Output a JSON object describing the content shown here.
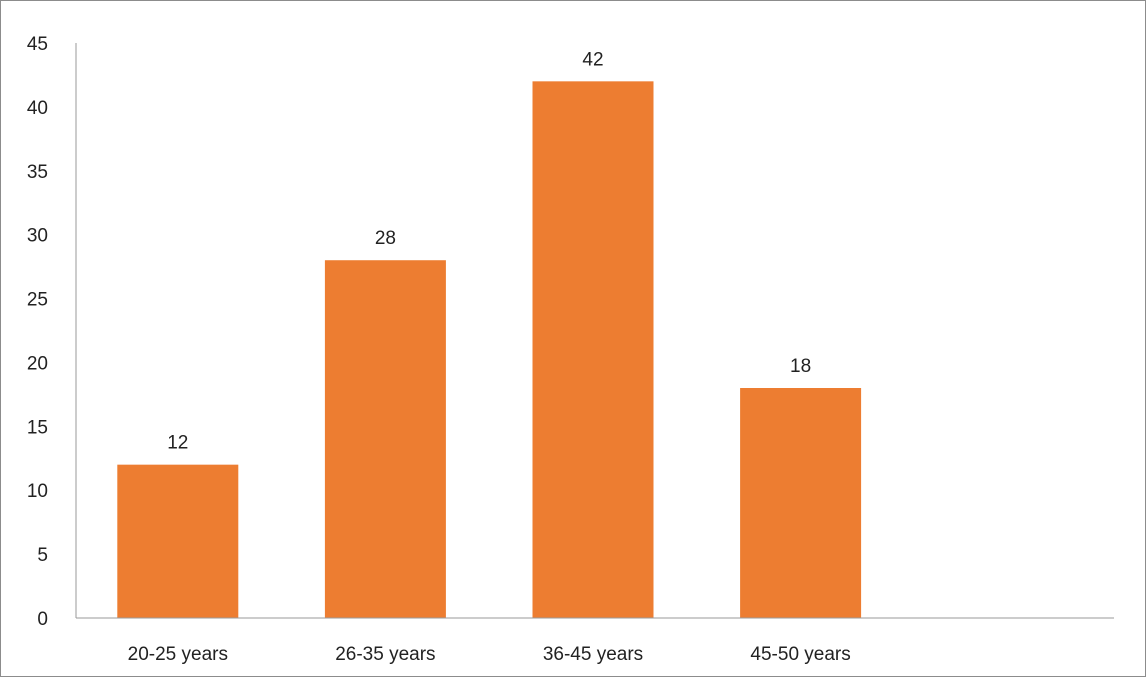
{
  "chart_data": {
    "type": "bar",
    "title": "",
    "xlabel": "",
    "ylabel": "",
    "categories": [
      "20-25 years",
      "26-35 years",
      "36-45 years",
      "45-50 years"
    ],
    "values": [
      12,
      28,
      42,
      18
    ],
    "data_labels": [
      "12",
      "28",
      "42",
      "18"
    ],
    "ylim": [
      0,
      45
    ],
    "yticks": [
      0,
      5,
      10,
      15,
      20,
      25,
      30,
      35,
      40,
      45
    ],
    "grid": false,
    "legend": "none",
    "bar_color": "#ED7D31"
  }
}
